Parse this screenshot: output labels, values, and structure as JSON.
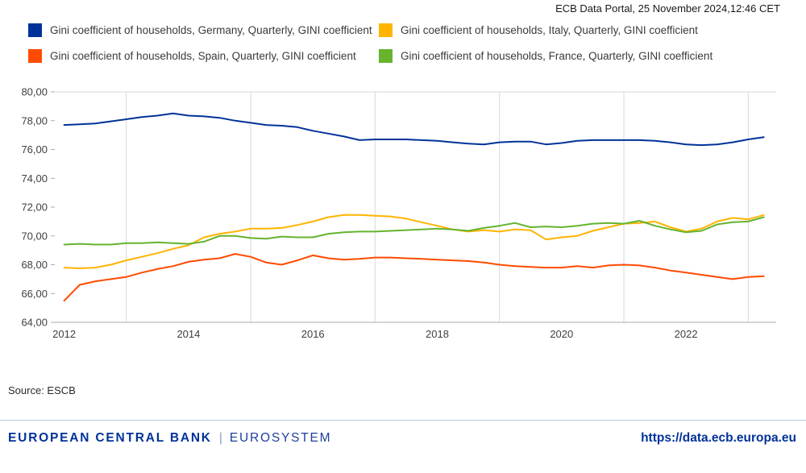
{
  "header": {
    "title": "ECB Data Portal, 25 November 2024,12:46 CET"
  },
  "source": {
    "text": "Source: ESCB"
  },
  "footer": {
    "bank": "EUROPEAN CENTRAL BANK",
    "separator": "|",
    "system": "EUROSYSTEM",
    "url": "https://data.ecb.europa.eu"
  },
  "chart_data": {
    "type": "line",
    "title": "",
    "xlabel": "",
    "ylabel": "",
    "x_start": 2012.0,
    "x_step": 0.25,
    "xlim": [
      2011.85,
      2023.45
    ],
    "ylim": [
      64,
      80
    ],
    "grid": "vertical-odd-years-plus-top-border",
    "legend_position": "top",
    "yticks": [
      64,
      66,
      68,
      70,
      72,
      74,
      76,
      78,
      80
    ],
    "ytick_labels": [
      "64,00",
      "66,00",
      "68,00",
      "70,00",
      "72,00",
      "74,00",
      "76,00",
      "78,00",
      "80,00"
    ],
    "xticks": [
      2012,
      2014,
      2016,
      2018,
      2020,
      2022
    ],
    "xtick_labels": [
      "2012",
      "2014",
      "2016",
      "2018",
      "2020",
      "2022"
    ],
    "gridline_years": [
      2013,
      2015,
      2017,
      2019,
      2021,
      2023
    ],
    "series": [
      {
        "id": "germany",
        "name": "Gini coefficient of households, Germany, Quarterly, GINI coefficient",
        "color": "#003299",
        "values": [
          77.7,
          77.75,
          77.8,
          77.95,
          78.1,
          78.25,
          78.35,
          78.5,
          78.35,
          78.3,
          78.2,
          78.0,
          77.85,
          77.7,
          77.65,
          77.55,
          77.3,
          77.1,
          76.9,
          76.65,
          76.7,
          76.7,
          76.7,
          76.65,
          76.6,
          76.5,
          76.4,
          76.35,
          76.5,
          76.55,
          76.55,
          76.35,
          76.45,
          76.6,
          76.65,
          76.65,
          76.65,
          76.65,
          76.6,
          76.5,
          76.35,
          76.3,
          76.35,
          76.5,
          76.7,
          76.85
        ]
      },
      {
        "id": "italy",
        "name": "Gini coefficient of households, Italy, Quarterly, GINI coefficient",
        "color": "#FFB400",
        "values": [
          67.8,
          67.75,
          67.8,
          68.0,
          68.3,
          68.55,
          68.8,
          69.1,
          69.35,
          69.9,
          70.15,
          70.3,
          70.5,
          70.5,
          70.55,
          70.75,
          71.0,
          71.3,
          71.45,
          71.45,
          71.4,
          71.35,
          71.2,
          70.95,
          70.7,
          70.45,
          70.3,
          70.4,
          70.3,
          70.45,
          70.4,
          69.75,
          69.9,
          70.0,
          70.35,
          70.6,
          70.85,
          70.9,
          71.0,
          70.6,
          70.3,
          70.5,
          71.0,
          71.25,
          71.15,
          71.45
        ]
      },
      {
        "id": "spain",
        "name": "Gini coefficient of households, Spain, Quarterly, GINI coefficient",
        "color": "#FF4B00",
        "values": [
          65.5,
          66.6,
          66.85,
          67.0,
          67.15,
          67.45,
          67.7,
          67.9,
          68.2,
          68.35,
          68.45,
          68.75,
          68.55,
          68.15,
          68.0,
          68.3,
          68.65,
          68.45,
          68.35,
          68.4,
          68.5,
          68.5,
          68.45,
          68.4,
          68.35,
          68.3,
          68.25,
          68.15,
          68.0,
          67.9,
          67.85,
          67.8,
          67.8,
          67.9,
          67.8,
          67.95,
          68.0,
          67.95,
          67.8,
          67.6,
          67.45,
          67.3,
          67.15,
          67.0,
          67.15,
          67.2
        ]
      },
      {
        "id": "france",
        "name": "Gini coefficient of households, France, Quarterly, GINI coefficient",
        "color": "#65B32E",
        "values": [
          69.4,
          69.45,
          69.4,
          69.4,
          69.5,
          69.5,
          69.55,
          69.5,
          69.45,
          69.6,
          70.0,
          70.0,
          69.85,
          69.8,
          69.95,
          69.9,
          69.9,
          70.15,
          70.25,
          70.3,
          70.3,
          70.35,
          70.4,
          70.45,
          70.5,
          70.45,
          70.35,
          70.55,
          70.7,
          70.9,
          70.6,
          70.65,
          70.6,
          70.7,
          70.85,
          70.9,
          70.85,
          71.05,
          70.7,
          70.45,
          70.25,
          70.35,
          70.8,
          70.95,
          71.0,
          71.3
        ]
      }
    ]
  }
}
